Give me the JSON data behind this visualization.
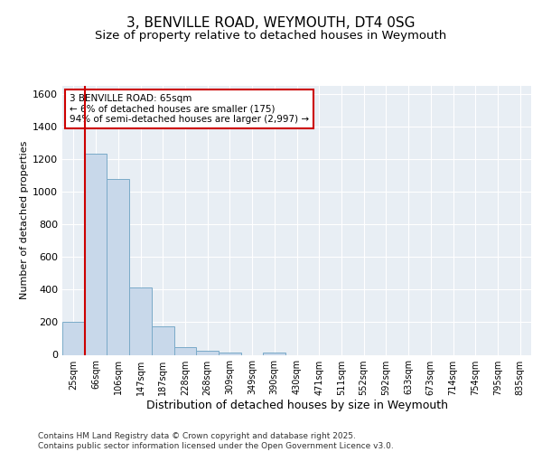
{
  "title1": "3, BENVILLE ROAD, WEYMOUTH, DT4 0SG",
  "title2": "Size of property relative to detached houses in Weymouth",
  "xlabel": "Distribution of detached houses by size in Weymouth",
  "ylabel": "Number of detached properties",
  "bin_labels": [
    "25sqm",
    "66sqm",
    "106sqm",
    "147sqm",
    "187sqm",
    "228sqm",
    "268sqm",
    "309sqm",
    "349sqm",
    "390sqm",
    "430sqm",
    "471sqm",
    "511sqm",
    "552sqm",
    "592sqm",
    "633sqm",
    "673sqm",
    "714sqm",
    "754sqm",
    "795sqm",
    "835sqm"
  ],
  "bar_values": [
    203,
    1232,
    1078,
    415,
    175,
    47,
    25,
    15,
    0,
    15,
    0,
    0,
    0,
    0,
    0,
    0,
    0,
    0,
    0,
    0,
    0
  ],
  "bar_color": "#c8d8ea",
  "bar_edge_color": "#7aaac8",
  "red_line_x": 1,
  "ylim": [
    0,
    1650
  ],
  "yticks": [
    0,
    200,
    400,
    600,
    800,
    1000,
    1200,
    1400,
    1600
  ],
  "annotation_text": "3 BENVILLE ROAD: 65sqm\n← 6% of detached houses are smaller (175)\n94% of semi-detached houses are larger (2,997) →",
  "annotation_box_color": "#ffffff",
  "annotation_box_edge": "#cc0000",
  "red_line_color": "#cc0000",
  "footer_text": "Contains HM Land Registry data © Crown copyright and database right 2025.\nContains public sector information licensed under the Open Government Licence v3.0.",
  "bg_color": "#e8eef4",
  "grid_color": "#ffffff",
  "fig_bg_color": "#ffffff",
  "title1_fontsize": 11,
  "title2_fontsize": 9.5,
  "ylabel_fontsize": 8,
  "xlabel_fontsize": 9,
  "ytick_fontsize": 8,
  "xtick_fontsize": 7,
  "footer_fontsize": 6.5,
  "annot_fontsize": 7.5
}
